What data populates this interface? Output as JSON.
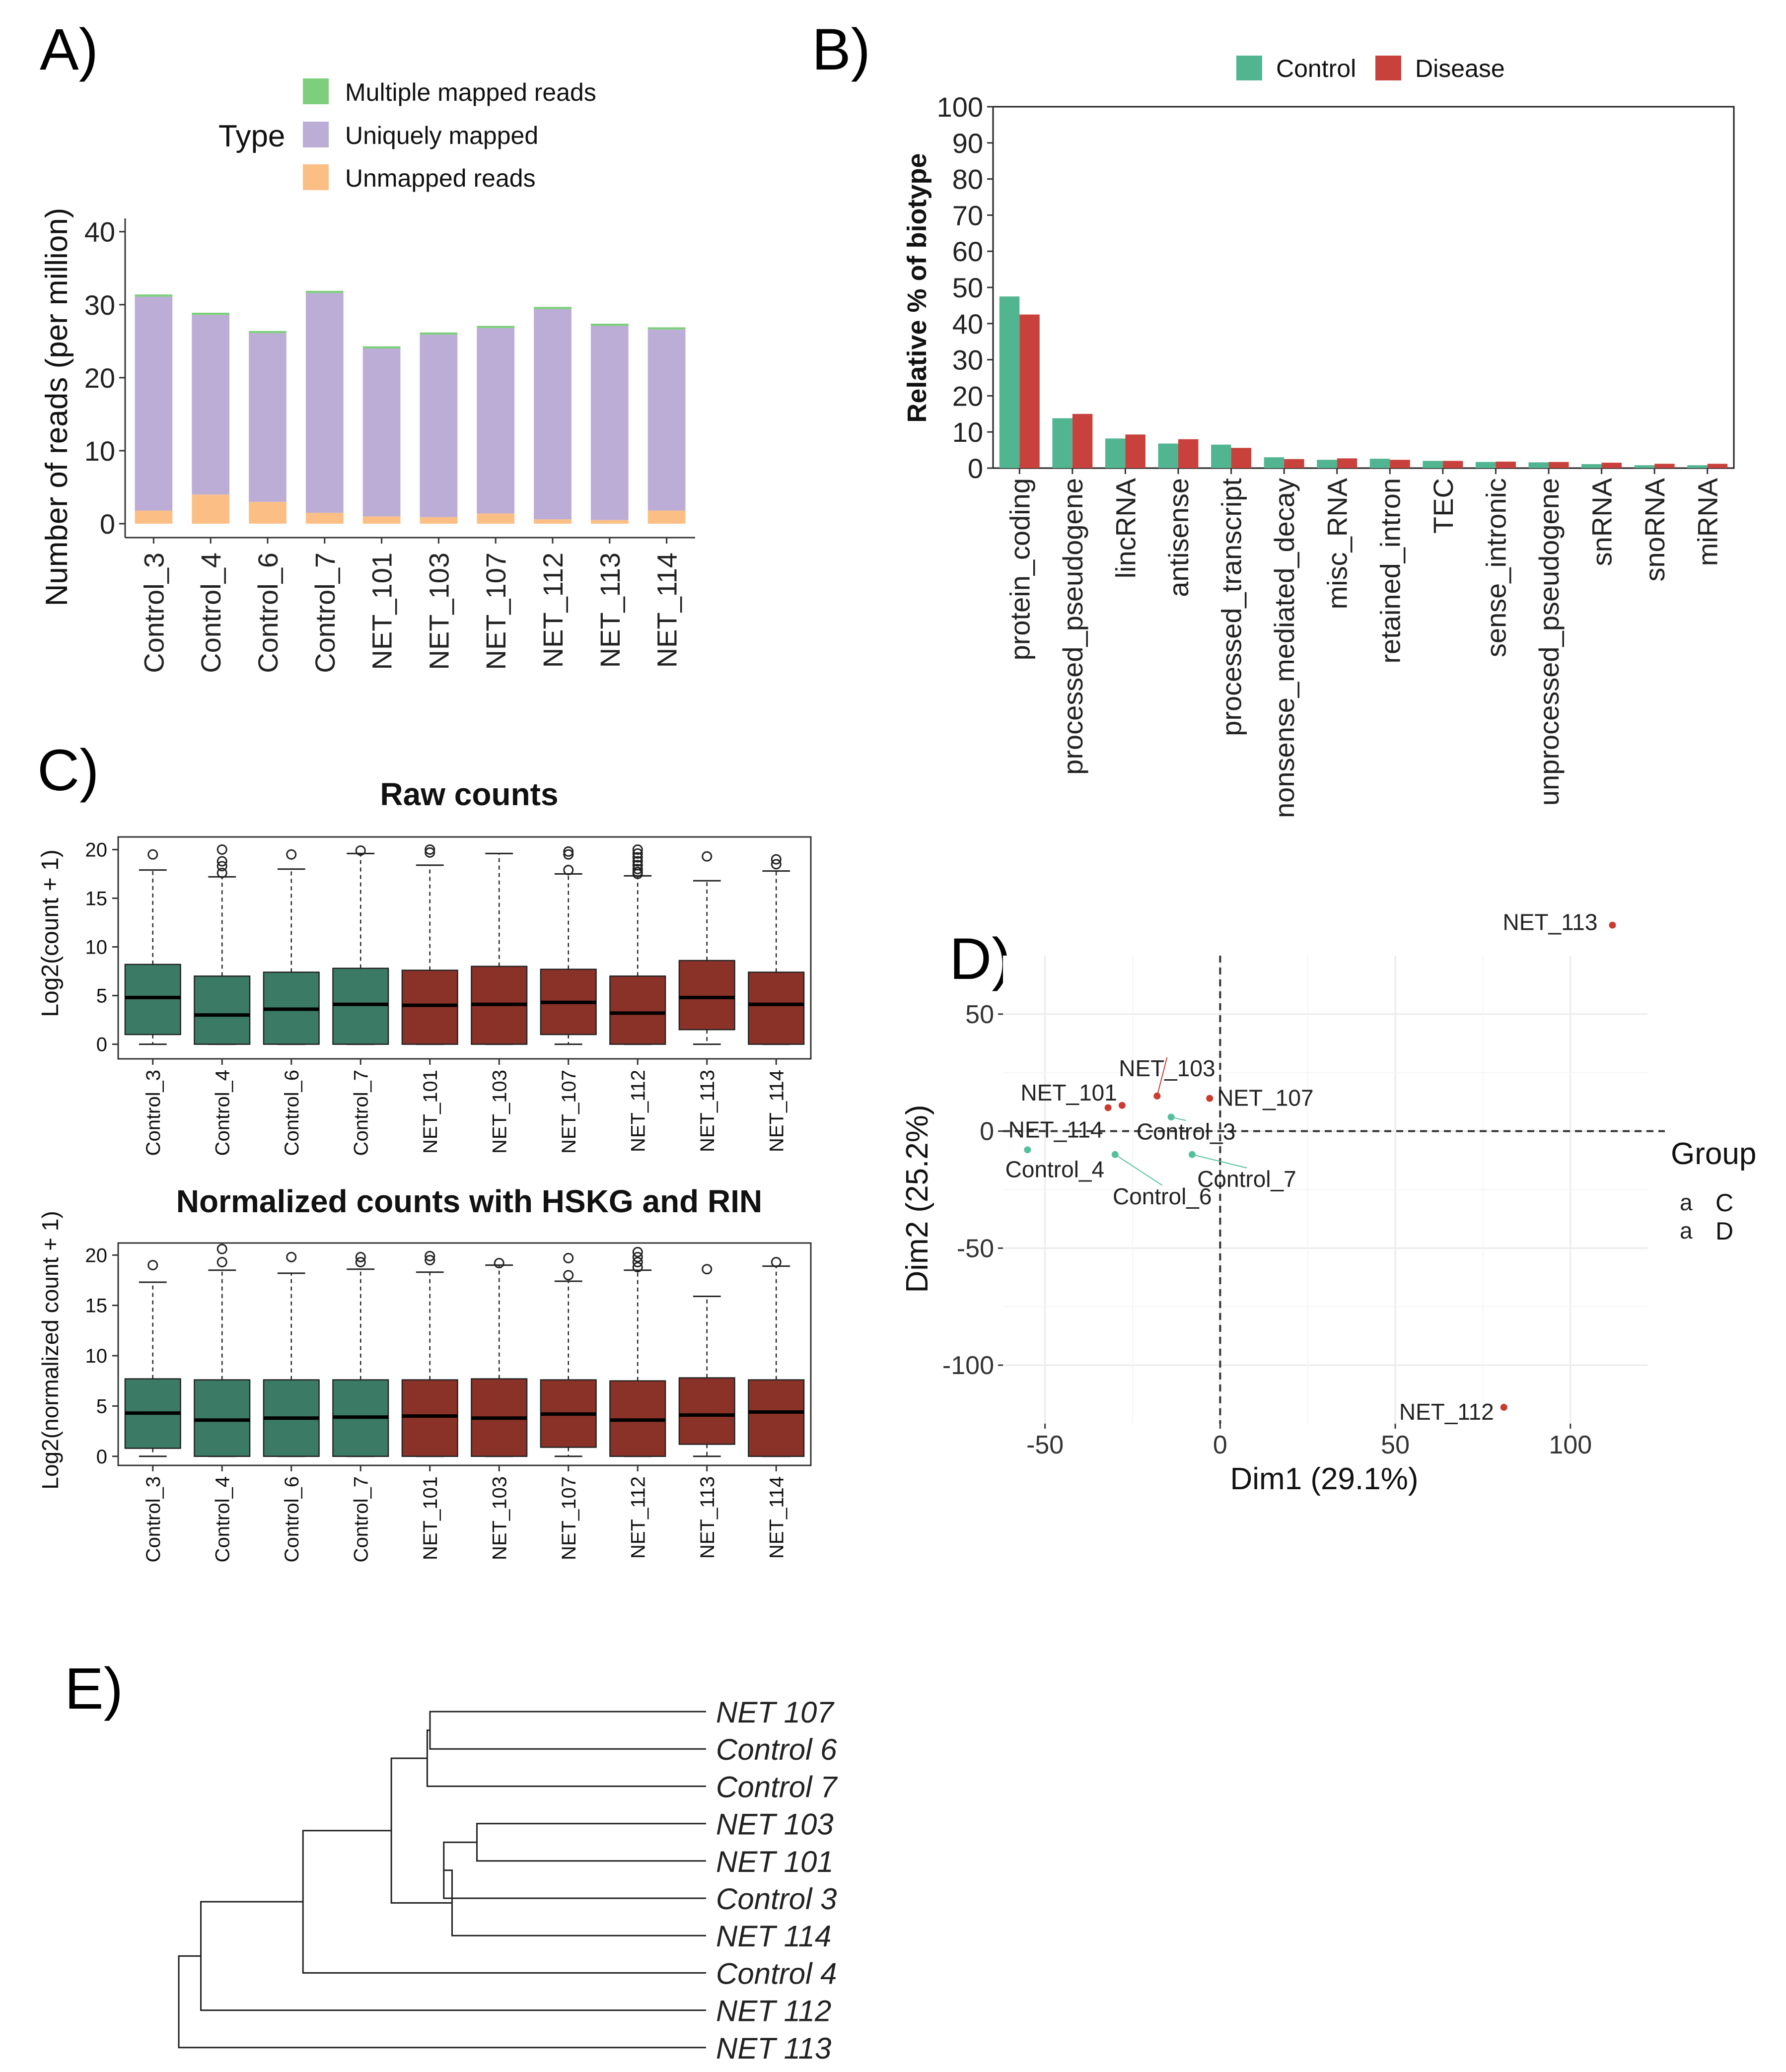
{
  "panels": {
    "a": "A)",
    "b": "B)",
    "c": "C)",
    "d": "D)",
    "e": "E)"
  },
  "colors": {
    "multiple": "#7dcf7d",
    "unique": "#bcadd6",
    "unmapped": "#fbbf86",
    "control": "#52b592",
    "disease": "#c9413c",
    "box_control": "#3b7b66",
    "box_disease": "#8b3228",
    "pca_control": "#55c09c",
    "pca_disease": "#cc3b2f"
  },
  "chart_data": [
    {
      "id": "A",
      "type": "bar",
      "stacked": true,
      "title": "",
      "xlabel": "",
      "ylabel": "Number of reads (per million)",
      "ylim": [
        0,
        41
      ],
      "yticks": [
        0,
        10,
        20,
        30,
        40
      ],
      "legend_title": "Type",
      "legend": [
        "Multiple mapped reads",
        "Uniquely mapped",
        "Unmapped reads"
      ],
      "categories": [
        "Control_3",
        "Control_4",
        "Control_6",
        "Control_7",
        "NET_101",
        "NET_103",
        "NET_107",
        "NET_112",
        "NET_113",
        "NET_114"
      ],
      "series": [
        {
          "name": "Unmapped reads",
          "values": [
            1.8,
            4.0,
            3.0,
            1.5,
            1.0,
            0.9,
            1.4,
            0.6,
            0.5,
            1.8
          ]
        },
        {
          "name": "Uniquely mapped",
          "values": [
            29.3,
            24.6,
            23.1,
            30.1,
            23.0,
            25.0,
            25.4,
            28.8,
            26.6,
            24.8
          ]
        },
        {
          "name": "Multiple mapped reads",
          "values": [
            0.3,
            0.3,
            0.3,
            0.3,
            0.3,
            0.3,
            0.3,
            0.3,
            0.3,
            0.3
          ]
        }
      ]
    },
    {
      "id": "B",
      "type": "bar",
      "title": "",
      "xlabel": "",
      "ylabel": "Relative % of biotype",
      "ylim": [
        0,
        100
      ],
      "yticks": [
        0,
        10,
        20,
        30,
        40,
        50,
        60,
        70,
        80,
        90,
        100
      ],
      "legend": [
        "Control",
        "Disease"
      ],
      "categories": [
        "protein_coding",
        "processed_pseudogene",
        "lincRNA",
        "antisense",
        "processed_transcript",
        "nonsense_mediated_decay",
        "misc_RNA",
        "retained_intron",
        "TEC",
        "sense_intronic",
        "unprocessed_pseudogene",
        "snRNA",
        "snoRNA",
        "miRNA"
      ],
      "series": [
        {
          "name": "Control",
          "values": [
            47.5,
            13.8,
            8.2,
            6.8,
            6.5,
            3.0,
            2.3,
            2.6,
            2.0,
            1.7,
            1.6,
            1.1,
            0.8,
            0.8
          ]
        },
        {
          "name": "Disease",
          "values": [
            42.5,
            15.0,
            9.3,
            8.0,
            5.6,
            2.5,
            2.7,
            2.3,
            2.0,
            1.8,
            1.7,
            1.5,
            1.2,
            1.2
          ]
        }
      ]
    },
    {
      "id": "C1",
      "type": "box",
      "title": "Raw counts",
      "ylabel": "Log2(count + 1)",
      "ylim": [
        -1.5,
        21.3
      ],
      "yticks": [
        0,
        5,
        10,
        15,
        20
      ],
      "categories": [
        "Control_3",
        "Control_4",
        "Control_6",
        "Control_7",
        "NET_101",
        "NET_103",
        "NET_107",
        "NET_112",
        "NET_113",
        "NET_114"
      ],
      "groups": [
        "C",
        "C",
        "C",
        "C",
        "D",
        "D",
        "D",
        "D",
        "D",
        "D"
      ],
      "stats": [
        {
          "min": 0,
          "q1": 1.0,
          "median": 4.8,
          "q3": 8.2,
          "max": 17.9,
          "outliers": [
            19.5
          ]
        },
        {
          "min": 0,
          "q1": 0,
          "median": 3.0,
          "q3": 7.0,
          "max": 17.2,
          "outliers": [
            17.6,
            18.3,
            18.8,
            20.0
          ]
        },
        {
          "min": 0,
          "q1": 0,
          "median": 3.6,
          "q3": 7.4,
          "max": 18.0,
          "outliers": [
            19.5
          ]
        },
        {
          "min": 0,
          "q1": 0,
          "median": 4.1,
          "q3": 7.8,
          "max": 19.6,
          "outliers": [
            19.9
          ]
        },
        {
          "min": 0,
          "q1": 0,
          "median": 4.0,
          "q3": 7.6,
          "max": 18.4,
          "outliers": [
            19.7,
            20.0
          ]
        },
        {
          "min": 0,
          "q1": 0,
          "median": 4.1,
          "q3": 8.0,
          "max": 19.6,
          "outliers": []
        },
        {
          "min": 0,
          "q1": 1.0,
          "median": 4.3,
          "q3": 7.7,
          "max": 17.5,
          "outliers": [
            17.9,
            19.5,
            19.8
          ]
        },
        {
          "min": 0,
          "q1": 0,
          "median": 3.2,
          "q3": 7.0,
          "max": 17.3,
          "outliers": [
            17.5,
            17.7,
            18.0,
            18.4,
            18.8,
            19.2,
            19.6,
            20.0
          ]
        },
        {
          "min": 0,
          "q1": 1.5,
          "median": 4.8,
          "q3": 8.6,
          "max": 16.8,
          "outliers": [
            19.3
          ]
        },
        {
          "min": 0,
          "q1": 0,
          "median": 4.1,
          "q3": 7.4,
          "max": 17.8,
          "outliers": [
            18.5,
            19.0
          ]
        }
      ]
    },
    {
      "id": "C2",
      "type": "box",
      "title": "Normalized counts with HSKG and RIN",
      "ylabel": "Log2(normalized count + 1)",
      "ylim": [
        -0.9,
        21.2
      ],
      "yticks": [
        0,
        5,
        10,
        15,
        20
      ],
      "categories": [
        "Control_3",
        "Control_4",
        "Control_6",
        "Control_7",
        "NET_101",
        "NET_103",
        "NET_107",
        "NET_112",
        "NET_113",
        "NET_114"
      ],
      "groups": [
        "C",
        "C",
        "C",
        "C",
        "D",
        "D",
        "D",
        "D",
        "D",
        "D"
      ],
      "stats": [
        {
          "min": 0,
          "q1": 0.8,
          "median": 4.3,
          "q3": 7.7,
          "max": 17.3,
          "outliers": [
            19.0
          ]
        },
        {
          "min": 0,
          "q1": 0,
          "median": 3.6,
          "q3": 7.6,
          "max": 18.5,
          "outliers": [
            19.3,
            20.6
          ]
        },
        {
          "min": 0,
          "q1": 0,
          "median": 3.8,
          "q3": 7.6,
          "max": 18.2,
          "outliers": [
            19.8
          ]
        },
        {
          "min": 0,
          "q1": 0,
          "median": 3.9,
          "q3": 7.6,
          "max": 18.6,
          "outliers": [
            19.3,
            19.8
          ]
        },
        {
          "min": 0,
          "q1": 0,
          "median": 4.0,
          "q3": 7.6,
          "max": 18.3,
          "outliers": [
            19.5,
            19.9
          ]
        },
        {
          "min": 0,
          "q1": 0,
          "median": 3.8,
          "q3": 7.7,
          "max": 19.0,
          "outliers": [
            19.2
          ]
        },
        {
          "min": 0,
          "q1": 0.9,
          "median": 4.2,
          "q3": 7.6,
          "max": 17.4,
          "outliers": [
            18.0,
            19.7
          ]
        },
        {
          "min": 0,
          "q1": 0,
          "median": 3.6,
          "q3": 7.5,
          "max": 18.5,
          "outliers": [
            18.8,
            19.3,
            19.8,
            20.3
          ]
        },
        {
          "min": 0,
          "q1": 1.2,
          "median": 4.1,
          "q3": 7.8,
          "max": 15.9,
          "outliers": [
            18.6
          ]
        },
        {
          "min": 0,
          "q1": 0,
          "median": 4.4,
          "q3": 7.6,
          "max": 18.9,
          "outliers": [
            19.3
          ]
        }
      ]
    },
    {
      "id": "D",
      "type": "scatter",
      "title": "",
      "xlabel": "Dim1 (29.1%)",
      "ylabel": "Dim2 (25.2%)",
      "xlim": [
        -62,
        122
      ],
      "ylim": [
        -125,
        75
      ],
      "xticks": [
        -50,
        0,
        50,
        100
      ],
      "yticks": [
        -100,
        -50,
        0,
        50
      ],
      "legend_title": "Group",
      "legend": [
        "C",
        "D"
      ],
      "legend_key": "a",
      "points": [
        {
          "label": "NET_113",
          "group": "D",
          "x": 112,
          "y": 88
        },
        {
          "label": "NET_112",
          "group": "D",
          "x": 81,
          "y": -118
        },
        {
          "label": "NET_103",
          "group": "D",
          "x": -18,
          "y": 15
        },
        {
          "label": "NET_107",
          "group": "D",
          "x": -3,
          "y": 14
        },
        {
          "label": "NET_101",
          "group": "D",
          "x": -28,
          "y": 11
        },
        {
          "label": "NET_114",
          "group": "D",
          "x": -32,
          "y": 10
        },
        {
          "label": "Control_3",
          "group": "C",
          "x": -14,
          "y": 6
        },
        {
          "label": "Control_4",
          "group": "C",
          "x": -55,
          "y": -8
        },
        {
          "label": "Control_6",
          "group": "C",
          "x": -30,
          "y": -10
        },
        {
          "label": "Control_7",
          "group": "C",
          "x": -8,
          "y": -10
        }
      ]
    },
    {
      "id": "E",
      "type": "dendrogram",
      "title": "",
      "order": [
        "NET 107",
        "Control 6",
        "Control 7",
        "NET 103",
        "NET 101",
        "Control 3",
        "NET 114",
        "Control 4",
        "NET 112",
        "NET 113"
      ],
      "groups": [
        "D",
        "C",
        "C",
        "D",
        "D",
        "C",
        "D",
        "C",
        "D",
        "D"
      ],
      "merges": [
        {
          "children": [
            "NET 107",
            "Control 6"
          ],
          "height": 1.0
        },
        {
          "children": [
            "NET 103",
            "NET 101"
          ],
          "height": 0.83
        },
        {
          "children": [
            "NET 107+Control 6",
            "Control 7"
          ],
          "height": 1.01
        },
        {
          "children": [
            "NET 103+NET 101",
            "Control 3"
          ],
          "height": 0.95
        },
        {
          "children": [
            "cluster 4",
            "NET 114"
          ],
          "height": 0.92
        },
        {
          "children": [
            "cluster 3",
            "cluster 5"
          ],
          "height": 1.14
        },
        {
          "children": [
            "cluster 6",
            "Control 4"
          ],
          "height": 1.46
        },
        {
          "children": [
            "cluster 7",
            "NET 112"
          ],
          "height": 1.83
        },
        {
          "children": [
            "cluster 8",
            "NET 113"
          ],
          "height": 1.91
        }
      ]
    }
  ]
}
